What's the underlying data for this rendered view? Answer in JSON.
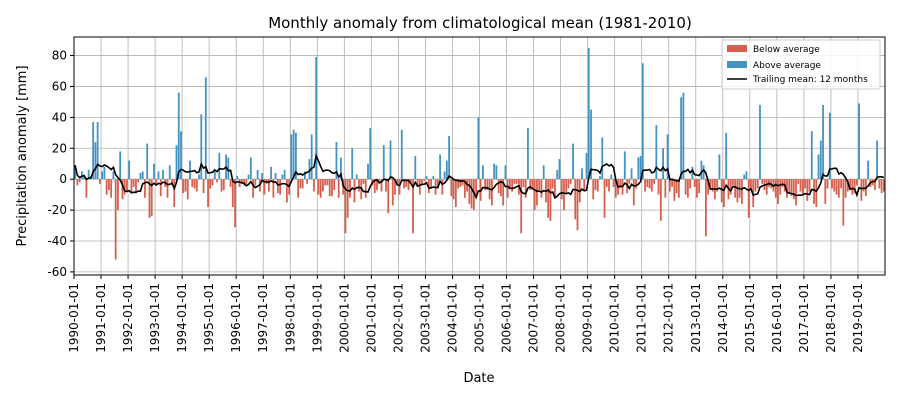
{
  "chart_data": {
    "type": "bar",
    "title": "Monthly anomaly from climatological mean (1981-2010)",
    "xlabel": "Date",
    "ylabel": "Precipitation anomaly [mm]",
    "x_start": "1990-01",
    "x_end": "2020-01",
    "ylim": [
      -62,
      92
    ],
    "yticks": [
      -60,
      -40,
      -20,
      0,
      20,
      40,
      60,
      80
    ],
    "xtick_labels": [
      "1990-01-01",
      "1991-01-01",
      "1992-01-01",
      "1993-01-01",
      "1994-01-01",
      "1995-01-01",
      "1996-01-01",
      "1997-01-01",
      "1998-01-01",
      "1999-01-01",
      "2000-01-01",
      "2001-01-01",
      "2002-01-01",
      "2003-01-01",
      "2004-01-01",
      "2005-01-01",
      "2006-01-01",
      "2007-01-01",
      "2008-01-01",
      "2009-01-01",
      "2010-01-01",
      "2011-01-01",
      "2012-01-01",
      "2013-01-01",
      "2014-01-01",
      "2015-01-01",
      "2016-01-01",
      "2017-01-01",
      "2018-01-01",
      "2019-01-01"
    ],
    "grid": true,
    "legend_position": "top-right",
    "colors": {
      "below": "#d6604d",
      "above": "#4393c3",
      "mean": "#000000"
    },
    "series": [
      {
        "name": "Below average",
        "kind": "bar"
      },
      {
        "name": "Above average",
        "kind": "bar"
      },
      {
        "name": "Trailing mean: 12 months",
        "kind": "line",
        "window": 12
      }
    ],
    "monthly_anomaly": [
      9,
      -4,
      -2,
      5,
      3,
      -12,
      6,
      2,
      37,
      24,
      37,
      -3,
      5,
      8,
      -10,
      -7,
      -12,
      5,
      -52,
      -20,
      18,
      -13,
      -10,
      -8,
      12,
      -9,
      -5,
      -8,
      -2,
      4,
      5,
      -12,
      23,
      -25,
      -24,
      10,
      -3,
      5,
      -11,
      6,
      -5,
      -12,
      9,
      -4,
      -18,
      22,
      56,
      31,
      -9,
      -8,
      -13,
      12,
      -5,
      -6,
      -8,
      3,
      42,
      -9,
      66,
      -18,
      -6,
      -4,
      6,
      -2,
      17,
      -8,
      -7,
      16,
      14,
      -5,
      -18,
      -31,
      2,
      -5,
      -2,
      -4,
      -3,
      3,
      14,
      -12,
      -4,
      6,
      -8,
      4,
      -10,
      -3,
      -8,
      8,
      -12,
      4,
      -9,
      -10,
      3,
      6,
      -15,
      -10,
      29,
      32,
      30,
      -12,
      -6,
      -6,
      5,
      -3,
      13,
      29,
      -8,
      79,
      -10,
      -12,
      -8,
      -4,
      -4,
      -11,
      -11,
      -7,
      24,
      -12,
      14,
      -10,
      -35,
      -25,
      -12,
      20,
      -15,
      3,
      -8,
      -13,
      -3,
      -12,
      10,
      33,
      -4,
      -9,
      -7,
      -3,
      -8,
      22,
      -8,
      -22,
      25,
      -17,
      -10,
      -3,
      -10,
      32,
      -6,
      -5,
      -7,
      -3,
      -35,
      15,
      -5,
      -10,
      -4,
      -1,
      2,
      -9,
      -6,
      2,
      -10,
      -5,
      16,
      -10,
      5,
      12,
      28,
      -11,
      -13,
      -18,
      -6,
      -5,
      -4,
      -12,
      -8,
      -16,
      -19,
      -20,
      -10,
      40,
      -14,
      9,
      -7,
      -7,
      -13,
      -17,
      10,
      9,
      -9,
      -11,
      -17,
      9,
      -12,
      -6,
      -8,
      -3,
      -3,
      -10,
      -35,
      -5,
      -12,
      33,
      -7,
      -6,
      -20,
      -17,
      -7,
      -12,
      9,
      -15,
      -25,
      -27,
      -6,
      -12,
      6,
      13,
      -13,
      -20,
      -10,
      -6,
      -3,
      23,
      -26,
      -33,
      -15,
      7,
      -7,
      17,
      85,
      45,
      -13,
      -7,
      -8,
      2,
      27,
      -25,
      -5,
      -8,
      3,
      -5,
      -12,
      -10,
      -6,
      -10,
      18,
      -9,
      -3,
      7,
      -17,
      -6,
      14,
      15,
      75,
      -8,
      -5,
      -6,
      -8,
      -3,
      35,
      -10,
      -27,
      20,
      -12,
      29,
      -8,
      -5,
      -14,
      -9,
      -12,
      53,
      56,
      -10,
      -12,
      -6,
      8,
      -5,
      -12,
      -9,
      12,
      9,
      -37,
      -10,
      -5,
      -8,
      -13,
      -8,
      16,
      -15,
      -18,
      30,
      -13,
      -10,
      -4,
      -12,
      -15,
      -12,
      -16,
      3,
      5,
      -25,
      -6,
      -18,
      -8,
      -6,
      48,
      -3,
      -7,
      -10,
      -5,
      -6,
      -8,
      -12,
      -16,
      -10,
      -5,
      -8,
      -12,
      -9,
      -11,
      -13,
      -17,
      -3,
      -8,
      -10,
      -6,
      -14,
      -8,
      31,
      -16,
      -18,
      16,
      25,
      48,
      -16,
      -6,
      43,
      -6,
      -8,
      -10,
      -12,
      -6,
      -30,
      -12,
      -8,
      -7,
      -10,
      -9,
      -4,
      49,
      -14,
      -8,
      -11,
      12,
      -5,
      -4,
      -7,
      25,
      -6,
      -9,
      -8
    ]
  }
}
